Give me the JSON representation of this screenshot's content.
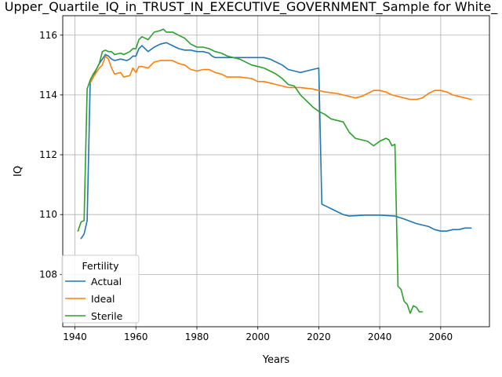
{
  "chart_data": {
    "type": "line",
    "title": "Upper_Quartile_IQ_in_TRUST_IN_EXECUTIVE_GOVERNMENT_Sample for White_",
    "xlabel": "Years",
    "ylabel": "IQ",
    "xlim": [
      1936,
      2076
    ],
    "ylim": [
      106.25,
      116.65
    ],
    "xticks": [
      1940,
      1960,
      1980,
      2000,
      2020,
      2040,
      2060
    ],
    "yticks": [
      108,
      110,
      112,
      114,
      116
    ],
    "grid": true,
    "legend": {
      "title": "Fertility",
      "placement": "lower-left"
    },
    "series": [
      {
        "name": "Actual",
        "color": "#1f77b4",
        "x": [
          1942,
          1943,
          1944,
          1945,
          1946,
          1947,
          1948,
          1949,
          1950,
          1951,
          1952,
          1953,
          1955,
          1957,
          1958,
          1959,
          1960,
          1961,
          1962,
          1964,
          1966,
          1968,
          1970,
          1972,
          1974,
          1976,
          1978,
          1980,
          1982,
          1984,
          1985,
          1986,
          1990,
          1994,
          1998,
          2000,
          2002,
          2004,
          2006,
          2008,
          2010,
          2012,
          2014,
          2016,
          2018,
          2020,
          2021,
          2022,
          2024,
          2026,
          2028,
          2030,
          2035,
          2040,
          2045,
          2048,
          2052,
          2056,
          2058,
          2060,
          2062,
          2064,
          2066,
          2068,
          2070
        ],
        "y": [
          109.2,
          109.35,
          109.8,
          114.4,
          114.6,
          114.85,
          115.05,
          115.2,
          115.35,
          115.3,
          115.2,
          115.15,
          115.2,
          115.15,
          115.2,
          115.3,
          115.3,
          115.55,
          115.65,
          115.45,
          115.6,
          115.7,
          115.75,
          115.65,
          115.55,
          115.5,
          115.5,
          115.45,
          115.45,
          115.4,
          115.3,
          115.25,
          115.25,
          115.25,
          115.25,
          115.25,
          115.25,
          115.2,
          115.1,
          115.0,
          114.85,
          114.8,
          114.75,
          114.8,
          114.85,
          114.9,
          110.35,
          110.3,
          110.2,
          110.1,
          110.0,
          109.95,
          109.98,
          109.98,
          109.95,
          109.85,
          109.7,
          109.6,
          109.5,
          109.45,
          109.45,
          109.5,
          109.5,
          109.55,
          109.55
        ]
      },
      {
        "name": "Ideal",
        "color": "#ff7f0e",
        "x": [
          1945,
          1946,
          1947,
          1948,
          1949,
          1950,
          1951,
          1952,
          1953,
          1955,
          1956,
          1958,
          1959,
          1960,
          1961,
          1962,
          1964,
          1966,
          1968,
          1970,
          1972,
          1974,
          1976,
          1978,
          1980,
          1982,
          1984,
          1986,
          1988,
          1990,
          1994,
          1998,
          2000,
          2002,
          2004,
          2006,
          2008,
          2010,
          2014,
          2018,
          2020,
          2022,
          2026,
          2028,
          2030,
          2032,
          2034,
          2036,
          2038,
          2040,
          2042,
          2044,
          2046,
          2048,
          2050,
          2052,
          2054,
          2056,
          2058,
          2060,
          2062,
          2064,
          2066,
          2068,
          2070
        ],
        "y": [
          114.4,
          114.6,
          114.75,
          114.9,
          115.0,
          115.3,
          115.2,
          114.9,
          114.7,
          114.75,
          114.6,
          114.65,
          114.9,
          114.75,
          114.95,
          114.95,
          114.9,
          115.1,
          115.15,
          115.15,
          115.15,
          115.05,
          115.0,
          114.85,
          114.8,
          114.85,
          114.85,
          114.75,
          114.7,
          114.6,
          114.6,
          114.55,
          114.45,
          114.45,
          114.4,
          114.35,
          114.3,
          114.25,
          114.25,
          114.2,
          114.15,
          114.1,
          114.05,
          114.0,
          113.95,
          113.9,
          113.95,
          114.05,
          114.15,
          114.15,
          114.1,
          114.0,
          113.95,
          113.9,
          113.85,
          113.85,
          113.9,
          114.05,
          114.15,
          114.15,
          114.1,
          114.0,
          113.95,
          113.9,
          113.85
        ]
      },
      {
        "name": "Sterile",
        "color": "#2ca02c",
        "x": [
          1941,
          1942,
          1943,
          1944,
          1945,
          1946,
          1947,
          1948,
          1949,
          1950,
          1951,
          1952,
          1953,
          1955,
          1956,
          1958,
          1959,
          1960,
          1961,
          1962,
          1964,
          1966,
          1968,
          1969,
          1970,
          1972,
          1974,
          1976,
          1978,
          1980,
          1982,
          1984,
          1986,
          1988,
          1990,
          1994,
          1998,
          2000,
          2002,
          2004,
          2006,
          2008,
          2010,
          2012,
          2014,
          2016,
          2018,
          2020,
          2022,
          2024,
          2026,
          2028,
          2030,
          2032,
          2034,
          2036,
          2038,
          2040,
          2042,
          2043,
          2044,
          2045,
          2046,
          2047,
          2048,
          2049,
          2050,
          2051,
          2052,
          2053,
          2054
        ],
        "y": [
          109.45,
          109.75,
          109.8,
          114.2,
          114.5,
          114.7,
          114.85,
          115.05,
          115.45,
          115.5,
          115.45,
          115.45,
          115.35,
          115.4,
          115.35,
          115.45,
          115.55,
          115.55,
          115.85,
          115.95,
          115.85,
          116.1,
          116.15,
          116.2,
          116.1,
          116.1,
          116.0,
          115.9,
          115.7,
          115.6,
          115.6,
          115.55,
          115.45,
          115.4,
          115.3,
          115.2,
          115.0,
          114.95,
          114.9,
          114.8,
          114.7,
          114.55,
          114.35,
          114.3,
          114.0,
          113.8,
          113.6,
          113.45,
          113.35,
          113.2,
          113.15,
          113.1,
          112.75,
          112.55,
          112.5,
          112.45,
          112.3,
          112.45,
          112.55,
          112.5,
          112.3,
          112.35,
          107.6,
          107.5,
          107.1,
          107.0,
          106.7,
          106.95,
          106.9,
          106.75,
          106.75
        ]
      }
    ]
  }
}
